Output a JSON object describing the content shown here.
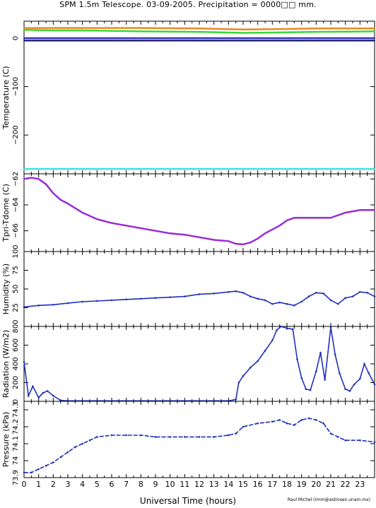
{
  "title": "SPM 1.5m Telescope. 03-09-2005. Precipitation = 0000□□ mm.",
  "xlabel": "Universal Time (hours)",
  "credit": "Raul Michel (rmm@astrosen.unam.mx)",
  "x_ticks": [
    "0",
    "1",
    "2",
    "3",
    "4",
    "5",
    "6",
    "7",
    "8",
    "9",
    "10",
    "11",
    "12",
    "13",
    "14",
    "15",
    "16",
    "17",
    "18",
    "19",
    "20",
    "21",
    "22",
    "23"
  ],
  "chart_data": [
    {
      "type": "line",
      "ylabel": "Temperature (C)",
      "ylim": [
        -280,
        35
      ],
      "yticks": [
        0,
        -100,
        -200
      ],
      "ytick_labels": [
        "0",
        "−100",
        "−200"
      ],
      "series": [
        {
          "color": "#e58a1f",
          "x": [
            0,
            4,
            8,
            12,
            15,
            18,
            20,
            24
          ],
          "y": [
            21,
            21,
            21,
            20,
            18,
            19,
            20,
            20
          ]
        },
        {
          "color": "#38d838",
          "x": [
            0,
            2,
            4,
            8,
            12,
            15,
            18,
            20,
            24
          ],
          "y": [
            17,
            16,
            16,
            14,
            13,
            11,
            12,
            13,
            14
          ]
        },
        {
          "color": "#3030c0",
          "x": [
            0,
            24
          ],
          "y": [
            0,
            0
          ]
        },
        {
          "color": "#202070",
          "x": [
            0,
            24
          ],
          "y": [
            -5,
            -5
          ]
        },
        {
          "color": "#40e0e0",
          "x": [
            0,
            24
          ],
          "y": [
            -270,
            -270
          ]
        }
      ]
    },
    {
      "type": "line",
      "ylabel": "Tpri-Tdome (C)",
      "ylim": [
        -67.6,
        -61.6
      ],
      "yticks": [
        -62,
        -64,
        -66
      ],
      "ytick_labels": [
        "−62",
        "−64",
        "−66"
      ],
      "series": [
        {
          "color": "#9a2bd6",
          "x": [
            0,
            0.5,
            1,
            1.5,
            2,
            2.5,
            3,
            4,
            5,
            6,
            7,
            8,
            9,
            10,
            11,
            12,
            13,
            14,
            14.5,
            15,
            15.5,
            16,
            16.5,
            17,
            17.5,
            18,
            18.5,
            19,
            19.5,
            20,
            21,
            22,
            23,
            24
          ],
          "y": [
            -62,
            -61.9,
            -62,
            -62.4,
            -63.1,
            -63.6,
            -63.9,
            -64.6,
            -65.1,
            -65.4,
            -65.6,
            -65.8,
            -66,
            -66.2,
            -66.3,
            -66.5,
            -66.7,
            -66.8,
            -67,
            -67.05,
            -66.9,
            -66.6,
            -66.2,
            -65.9,
            -65.6,
            -65.2,
            -65,
            -65,
            -65,
            -65,
            -65,
            -64.6,
            -64.4,
            -64.4
          ]
        }
      ]
    },
    {
      "type": "scatter",
      "ylabel": "Humidity (%)",
      "ylim": [
        0,
        100
      ],
      "yticks": [
        25,
        50,
        75,
        100
      ],
      "ytick_labels": [
        "25",
        "50",
        "75",
        "100"
      ],
      "series": [
        {
          "color": "#1f2fb8",
          "x": [
            0,
            1,
            2,
            3,
            4,
            5,
            6,
            7,
            8,
            9,
            10,
            11,
            12,
            13,
            14,
            14.5,
            15,
            15.5,
            16,
            16.5,
            17,
            17.5,
            18,
            18.5,
            19,
            19.5,
            20,
            20.5,
            21,
            21.5,
            22,
            22.5,
            23,
            23.5,
            24
          ],
          "y": [
            26,
            28,
            29,
            31,
            33,
            34,
            35,
            36,
            37,
            38,
            39,
            40,
            43,
            44,
            46,
            47,
            45,
            40,
            37,
            35,
            30,
            32,
            30,
            28,
            33,
            40,
            45,
            44,
            35,
            30,
            38,
            40,
            46,
            45,
            40
          ]
        }
      ]
    },
    {
      "type": "scatter",
      "ylabel": "Radiation (W/m2)",
      "ylim": [
        0,
        800
      ],
      "yticks": [
        0,
        200,
        400,
        600,
        800
      ],
      "ytick_labels": [
        "0",
        "200",
        "400",
        "600",
        "800"
      ],
      "series": [
        {
          "color": "#1f2fb8",
          "x": [
            0,
            0.3,
            0.6,
            1,
            1.3,
            1.6,
            2,
            2.5,
            3,
            5,
            8,
            11,
            13,
            14,
            14.5,
            14.7,
            15,
            15.5,
            16,
            16.5,
            17,
            17.3,
            17.6,
            18,
            18.4,
            18.7,
            19,
            19.3,
            19.6,
            20,
            20.3,
            20.6,
            21,
            21.3,
            21.6,
            22,
            22.3,
            22.6,
            23,
            23.3,
            23.6,
            24
          ],
          "y": [
            420,
            60,
            160,
            40,
            90,
            110,
            60,
            10,
            5,
            5,
            5,
            5,
            5,
            5,
            20,
            200,
            270,
            360,
            430,
            540,
            650,
            760,
            800,
            780,
            770,
            450,
            250,
            130,
            120,
            320,
            520,
            230,
            790,
            500,
            300,
            130,
            110,
            180,
            240,
            400,
            300,
            180
          ]
        }
      ]
    },
    {
      "type": "scatter",
      "ylabel": "Pressure (kPa)",
      "ylim": [
        73.9,
        74.35
      ],
      "yticks": [
        73.9,
        74.0,
        74.1,
        74.2,
        74.3
      ],
      "ytick_labels": [
        "73.9",
        "74",
        "74.1",
        "74.2",
        "74.3"
      ],
      "series": [
        {
          "color": "#1f2fb8",
          "x": [
            0,
            0.5,
            1,
            1.5,
            2,
            2.5,
            3,
            3.5,
            4,
            4.5,
            5,
            6,
            7,
            8,
            9,
            10,
            11,
            12,
            13,
            14,
            14.5,
            15,
            16,
            17,
            17.5,
            18,
            18.5,
            19,
            19.5,
            20,
            20.5,
            21,
            21.5,
            22,
            23,
            24
          ],
          "y": [
            73.93,
            73.93,
            73.95,
            73.97,
            73.99,
            74.02,
            74.05,
            74.08,
            74.1,
            74.12,
            74.14,
            74.15,
            74.15,
            74.15,
            74.14,
            74.14,
            74.14,
            74.14,
            74.14,
            74.15,
            74.16,
            74.2,
            74.22,
            74.23,
            74.24,
            74.22,
            74.21,
            74.24,
            74.25,
            74.24,
            74.22,
            74.16,
            74.14,
            74.12,
            74.12,
            74.11
          ]
        }
      ]
    }
  ]
}
